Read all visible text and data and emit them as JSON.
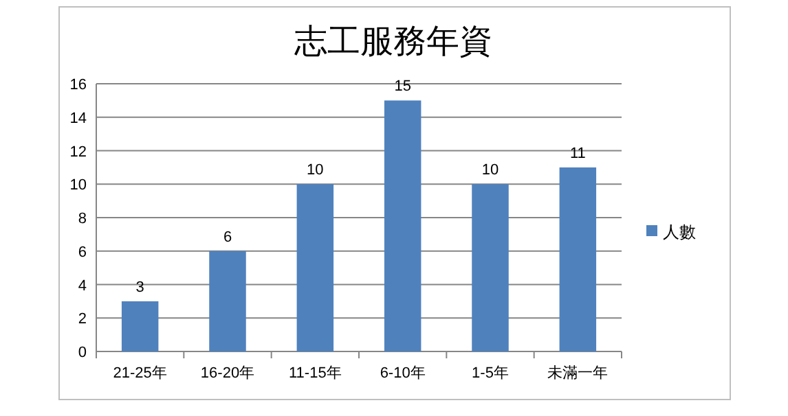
{
  "chart_data": {
    "type": "bar",
    "title": "志工服務年資",
    "categories": [
      "21-25年",
      "16-20年",
      "11-15年",
      "6-10年",
      "1-5年",
      "未滿一年"
    ],
    "series": [
      {
        "name": "人數",
        "color": "#4f81bd",
        "values": [
          3,
          6,
          10,
          15,
          10,
          11
        ]
      }
    ],
    "ylim": [
      0,
      16
    ],
    "yticks": [
      0,
      2,
      4,
      6,
      8,
      10,
      12,
      14,
      16
    ],
    "grid": "y",
    "legend": "right",
    "data_labels": true
  }
}
